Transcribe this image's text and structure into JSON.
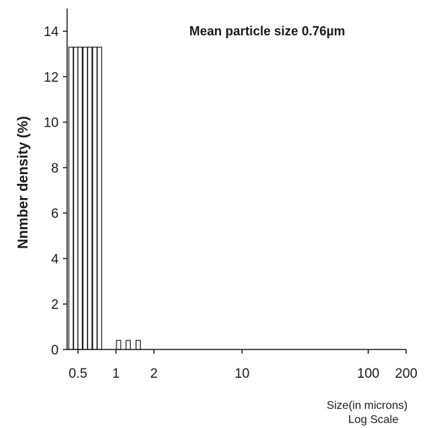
{
  "chart_data": {
    "type": "bar",
    "annotation": "Mean particle  size 0.76µm",
    "ylabel": "Nnmber density (%)",
    "xlabel_line1": "Size(in microns)",
    "xlabel_line2": "Log Scale",
    "x_scale": "log",
    "xlim": [
      0.41,
      200
    ],
    "ylim": [
      0,
      15
    ],
    "x_ticks": [
      {
        "value": 0.5,
        "label": "0.5"
      },
      {
        "value": 1,
        "label": "1"
      },
      {
        "value": 2,
        "label": "2"
      },
      {
        "value": 10,
        "label": "10"
      },
      {
        "value": 100,
        "label": "100"
      },
      {
        "value": 200,
        "label": "200"
      }
    ],
    "y_ticks": [
      {
        "value": 0,
        "label": "0"
      },
      {
        "value": 2,
        "label": "2"
      },
      {
        "value": 4,
        "label": "4"
      },
      {
        "value": 6,
        "label": "6"
      },
      {
        "value": 8,
        "label": "8"
      },
      {
        "value": 10,
        "label": "10"
      },
      {
        "value": 12,
        "label": "12"
      },
      {
        "value": 14,
        "label": "14"
      }
    ],
    "bars": [
      {
        "x": 0.44,
        "value": 13.3
      },
      {
        "x": 0.48,
        "value": 13.3
      },
      {
        "x": 0.52,
        "value": 13.3
      },
      {
        "x": 0.57,
        "value": 13.3
      },
      {
        "x": 0.62,
        "value": 13.3
      },
      {
        "x": 0.68,
        "value": 13.3
      },
      {
        "x": 0.74,
        "value": 13.3
      },
      {
        "x": 1.05,
        "value": 0.4
      },
      {
        "x": 1.25,
        "value": 0.4
      },
      {
        "x": 1.5,
        "value": 0.4
      }
    ],
    "grid": false,
    "bar_color": "#ffffff",
    "bar_edge_color": "#1a1a1a"
  }
}
